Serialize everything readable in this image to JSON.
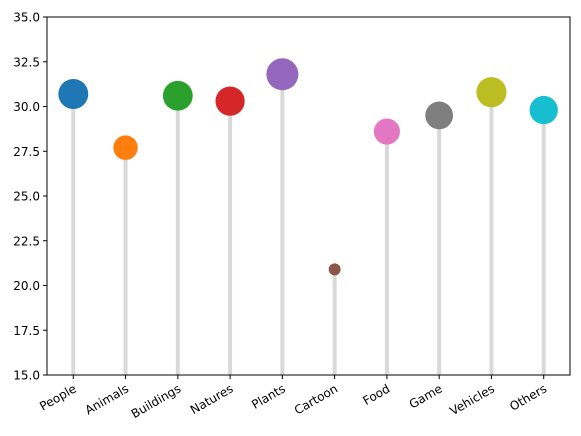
{
  "chart_data": {
    "type": "lollipop",
    "categories": [
      "People",
      "Animals",
      "Buildings",
      "Natures",
      "Plants",
      "Cartoon",
      "Food",
      "Game",
      "Vehicles",
      "Others"
    ],
    "values": [
      30.7,
      27.7,
      30.6,
      30.3,
      31.8,
      20.9,
      28.6,
      29.5,
      30.8,
      29.8
    ],
    "colors": [
      "#1f77b4",
      "#ff7f0e",
      "#2ca02c",
      "#d62728",
      "#9467bd",
      "#8c564b",
      "#e377c2",
      "#7f7f7f",
      "#bcbd22",
      "#17becf"
    ],
    "stem_color": "#d9d9d9",
    "ylim": [
      15.0,
      35.0
    ],
    "yticks": [
      "15.0",
      "17.5",
      "20.0",
      "22.5",
      "25.0",
      "27.5",
      "30.0",
      "32.5",
      "35.0"
    ],
    "xtick_rotation_deg": 30,
    "grid": false,
    "title": "",
    "xlabel": "",
    "ylabel": ""
  }
}
